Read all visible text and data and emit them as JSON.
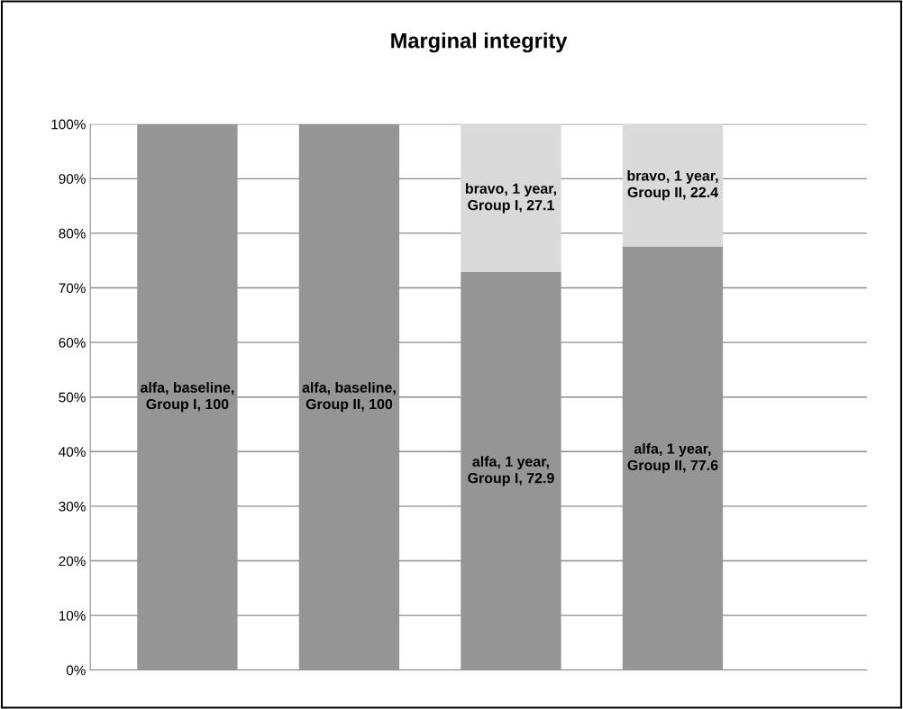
{
  "chart_data": {
    "type": "bar",
    "title": "Marginal integrity",
    "stacked": true,
    "categories": [
      null,
      null,
      null,
      null
    ],
    "series": [
      {
        "color": "#959595",
        "values": [
          100,
          100,
          72.9,
          77.6
        ],
        "value_labels": [
          "alfa, baseline,\nGroup I, 100",
          "alfa, baseline,\nGroup II, 100",
          "alfa, 1 year,\nGroup I, 72.9",
          "alfa, 1 year,\nGroup II, 77.6"
        ]
      },
      {
        "color": "#d9d9d9",
        "values": [
          null,
          null,
          27.1,
          22.4
        ],
        "value_labels": [
          null,
          null,
          "bravo, 1 year,\nGroup I, 27.1",
          "bravo, 1 year,\nGroup II, 22.4"
        ]
      }
    ],
    "ylim": [
      0,
      100
    ],
    "yticks": [
      {
        "value": 0,
        "label": "0%"
      },
      {
        "value": 10,
        "label": "10%"
      },
      {
        "value": 20,
        "label": "20%"
      },
      {
        "value": 30,
        "label": "30%"
      },
      {
        "value": 40,
        "label": "40%"
      },
      {
        "value": 50,
        "label": "50%"
      },
      {
        "value": 60,
        "label": "60%"
      },
      {
        "value": 70,
        "label": "70%"
      },
      {
        "value": 80,
        "label": "80%"
      },
      {
        "value": 90,
        "label": "90%"
      },
      {
        "value": 100,
        "label": "100%"
      }
    ],
    "grid": "y",
    "legend": false
  }
}
